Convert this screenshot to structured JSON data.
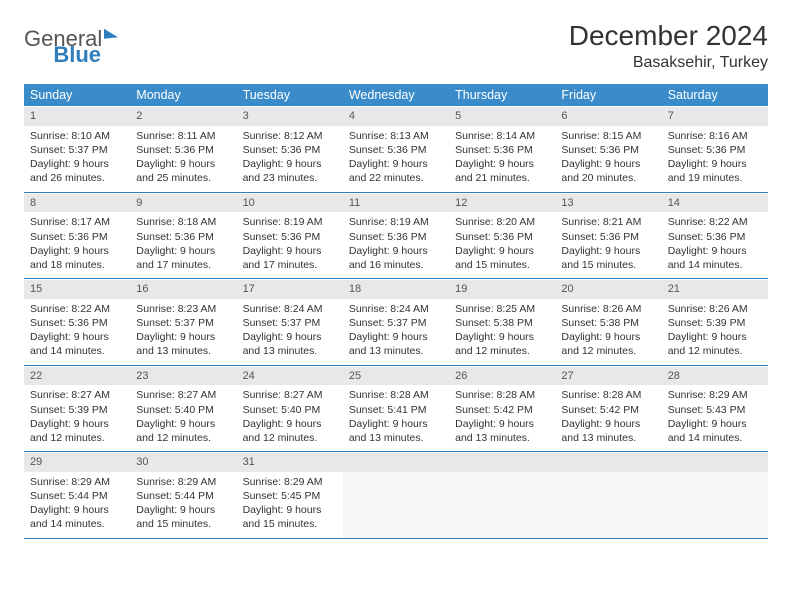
{
  "logo": {
    "text1": "General",
    "text2": "Blue"
  },
  "header": {
    "title": "December 2024",
    "location": "Basaksehir, Turkey"
  },
  "styling": {
    "header_bg": "#3a8bc9",
    "header_fg": "#ffffff",
    "daynum_bg": "#e8e8e8",
    "rule_color": "#2f7fbf",
    "page_bg": "#ffffff",
    "body_text": "#333333",
    "cell_font_size_pt": 10.5,
    "title_font_size_pt": 28
  },
  "weekdays": [
    "Sunday",
    "Monday",
    "Tuesday",
    "Wednesday",
    "Thursday",
    "Friday",
    "Saturday"
  ],
  "days": [
    {
      "n": "1",
      "sr": "Sunrise: 8:10 AM",
      "ss": "Sunset: 5:37 PM",
      "dl": "Daylight: 9 hours and 26 minutes."
    },
    {
      "n": "2",
      "sr": "Sunrise: 8:11 AM",
      "ss": "Sunset: 5:36 PM",
      "dl": "Daylight: 9 hours and 25 minutes."
    },
    {
      "n": "3",
      "sr": "Sunrise: 8:12 AM",
      "ss": "Sunset: 5:36 PM",
      "dl": "Daylight: 9 hours and 23 minutes."
    },
    {
      "n": "4",
      "sr": "Sunrise: 8:13 AM",
      "ss": "Sunset: 5:36 PM",
      "dl": "Daylight: 9 hours and 22 minutes."
    },
    {
      "n": "5",
      "sr": "Sunrise: 8:14 AM",
      "ss": "Sunset: 5:36 PM",
      "dl": "Daylight: 9 hours and 21 minutes."
    },
    {
      "n": "6",
      "sr": "Sunrise: 8:15 AM",
      "ss": "Sunset: 5:36 PM",
      "dl": "Daylight: 9 hours and 20 minutes."
    },
    {
      "n": "7",
      "sr": "Sunrise: 8:16 AM",
      "ss": "Sunset: 5:36 PM",
      "dl": "Daylight: 9 hours and 19 minutes."
    },
    {
      "n": "8",
      "sr": "Sunrise: 8:17 AM",
      "ss": "Sunset: 5:36 PM",
      "dl": "Daylight: 9 hours and 18 minutes."
    },
    {
      "n": "9",
      "sr": "Sunrise: 8:18 AM",
      "ss": "Sunset: 5:36 PM",
      "dl": "Daylight: 9 hours and 17 minutes."
    },
    {
      "n": "10",
      "sr": "Sunrise: 8:19 AM",
      "ss": "Sunset: 5:36 PM",
      "dl": "Daylight: 9 hours and 17 minutes."
    },
    {
      "n": "11",
      "sr": "Sunrise: 8:19 AM",
      "ss": "Sunset: 5:36 PM",
      "dl": "Daylight: 9 hours and 16 minutes."
    },
    {
      "n": "12",
      "sr": "Sunrise: 8:20 AM",
      "ss": "Sunset: 5:36 PM",
      "dl": "Daylight: 9 hours and 15 minutes."
    },
    {
      "n": "13",
      "sr": "Sunrise: 8:21 AM",
      "ss": "Sunset: 5:36 PM",
      "dl": "Daylight: 9 hours and 15 minutes."
    },
    {
      "n": "14",
      "sr": "Sunrise: 8:22 AM",
      "ss": "Sunset: 5:36 PM",
      "dl": "Daylight: 9 hours and 14 minutes."
    },
    {
      "n": "15",
      "sr": "Sunrise: 8:22 AM",
      "ss": "Sunset: 5:36 PM",
      "dl": "Daylight: 9 hours and 14 minutes."
    },
    {
      "n": "16",
      "sr": "Sunrise: 8:23 AM",
      "ss": "Sunset: 5:37 PM",
      "dl": "Daylight: 9 hours and 13 minutes."
    },
    {
      "n": "17",
      "sr": "Sunrise: 8:24 AM",
      "ss": "Sunset: 5:37 PM",
      "dl": "Daylight: 9 hours and 13 minutes."
    },
    {
      "n": "18",
      "sr": "Sunrise: 8:24 AM",
      "ss": "Sunset: 5:37 PM",
      "dl": "Daylight: 9 hours and 13 minutes."
    },
    {
      "n": "19",
      "sr": "Sunrise: 8:25 AM",
      "ss": "Sunset: 5:38 PM",
      "dl": "Daylight: 9 hours and 12 minutes."
    },
    {
      "n": "20",
      "sr": "Sunrise: 8:26 AM",
      "ss": "Sunset: 5:38 PM",
      "dl": "Daylight: 9 hours and 12 minutes."
    },
    {
      "n": "21",
      "sr": "Sunrise: 8:26 AM",
      "ss": "Sunset: 5:39 PM",
      "dl": "Daylight: 9 hours and 12 minutes."
    },
    {
      "n": "22",
      "sr": "Sunrise: 8:27 AM",
      "ss": "Sunset: 5:39 PM",
      "dl": "Daylight: 9 hours and 12 minutes."
    },
    {
      "n": "23",
      "sr": "Sunrise: 8:27 AM",
      "ss": "Sunset: 5:40 PM",
      "dl": "Daylight: 9 hours and 12 minutes."
    },
    {
      "n": "24",
      "sr": "Sunrise: 8:27 AM",
      "ss": "Sunset: 5:40 PM",
      "dl": "Daylight: 9 hours and 12 minutes."
    },
    {
      "n": "25",
      "sr": "Sunrise: 8:28 AM",
      "ss": "Sunset: 5:41 PM",
      "dl": "Daylight: 9 hours and 13 minutes."
    },
    {
      "n": "26",
      "sr": "Sunrise: 8:28 AM",
      "ss": "Sunset: 5:42 PM",
      "dl": "Daylight: 9 hours and 13 minutes."
    },
    {
      "n": "27",
      "sr": "Sunrise: 8:28 AM",
      "ss": "Sunset: 5:42 PM",
      "dl": "Daylight: 9 hours and 13 minutes."
    },
    {
      "n": "28",
      "sr": "Sunrise: 8:29 AM",
      "ss": "Sunset: 5:43 PM",
      "dl": "Daylight: 9 hours and 14 minutes."
    },
    {
      "n": "29",
      "sr": "Sunrise: 8:29 AM",
      "ss": "Sunset: 5:44 PM",
      "dl": "Daylight: 9 hours and 14 minutes."
    },
    {
      "n": "30",
      "sr": "Sunrise: 8:29 AM",
      "ss": "Sunset: 5:44 PM",
      "dl": "Daylight: 9 hours and 15 minutes."
    },
    {
      "n": "31",
      "sr": "Sunrise: 8:29 AM",
      "ss": "Sunset: 5:45 PM",
      "dl": "Daylight: 9 hours and 15 minutes."
    }
  ]
}
